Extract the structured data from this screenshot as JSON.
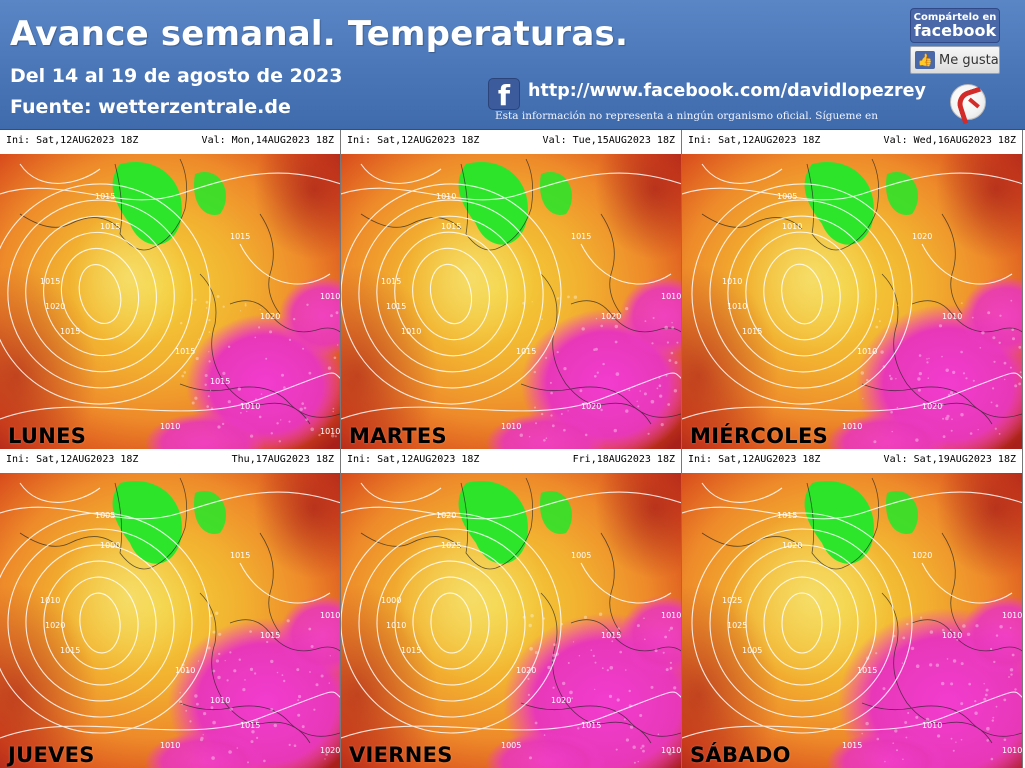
{
  "header": {
    "title": "Avance semanal. Temperaturas.",
    "date_range": "Del 14 al 19 de agosto de 2023",
    "source": "Fuente: wetterzentrale.de",
    "facebook_url": "http://www.facebook.com/davidlopezrey",
    "disclaimer": "Esta información no representa a ningún organismo oficial. Sígueme en",
    "share_line1": "Compártelo en",
    "share_line2": "facebook",
    "like_label": "Me gusta",
    "fb_logo_letter": "f",
    "icons": [
      "facebook-share-icon",
      "thumbs-up-icon",
      "facebook-logo-icon",
      "brand-logo-icon"
    ]
  },
  "colors": {
    "header_bg": "#4a76b8",
    "cold_green": "#22e82a",
    "yellow": "#f4d23a",
    "orange": "#ee8a2a",
    "red_orange": "#d84a1c",
    "dark_red": "#a8201a",
    "magenta": "#f23ccf",
    "isobar": "#ffffff"
  },
  "panels": [
    {
      "ini": "Ini: Sat,12AUG2023  18Z",
      "val": "Val: Mon,14AUG2023  18Z",
      "day": "LUNES",
      "isobar_labels": [
        "1015",
        "1015",
        "1015",
        "1015",
        "1020",
        "1015",
        "1020",
        "1015",
        "1010",
        "1010",
        "1010",
        "1010",
        "1015"
      ]
    },
    {
      "ini": "Ini: Sat,12AUG2023  18Z",
      "val": "Val: Tue,15AUG2023  18Z",
      "day": "MARTES",
      "isobar_labels": [
        "1010",
        "1015",
        "1015",
        "1015",
        "1015",
        "1010",
        "1020",
        "1015",
        "1020",
        "1010",
        "1010"
      ]
    },
    {
      "ini": "Ini: Sat,12AUG2023  18Z",
      "val": "Val: Wed,16AUG2023  18Z",
      "day": "MIÉRCOLES",
      "isobar_labels": [
        "1005",
        "1010",
        "1010",
        "1020",
        "1010",
        "1015",
        "1010",
        "1010",
        "1020",
        "1010"
      ]
    },
    {
      "ini": "Ini: Sat,12AUG2023  18Z",
      "val": "Thu,17AUG2023  18Z",
      "day": "JUEVES",
      "isobar_labels": [
        "1005",
        "1000",
        "1010",
        "1015",
        "1020",
        "1015",
        "1015",
        "1010",
        "1015",
        "1010",
        "1010",
        "1020",
        "1010"
      ]
    },
    {
      "ini": "Ini: Sat,12AUG2023  18Z",
      "val": "Fri,18AUG2023  18Z",
      "day": "VIERNES",
      "isobar_labels": [
        "1020",
        "1025",
        "1000",
        "1005",
        "1010",
        "1015",
        "1015",
        "1020",
        "1015",
        "1005",
        "1010",
        "1010",
        "1020"
      ]
    },
    {
      "ini": "Ini: Sat,12AUG2023  18Z",
      "val": "Val: Sat,19AUG2023  18Z",
      "day": "SÁBADO",
      "isobar_labels": [
        "1015",
        "1020",
        "1025",
        "1020",
        "1025",
        "1005",
        "1010",
        "1015",
        "1010",
        "1015",
        "1010",
        "1010"
      ]
    }
  ]
}
